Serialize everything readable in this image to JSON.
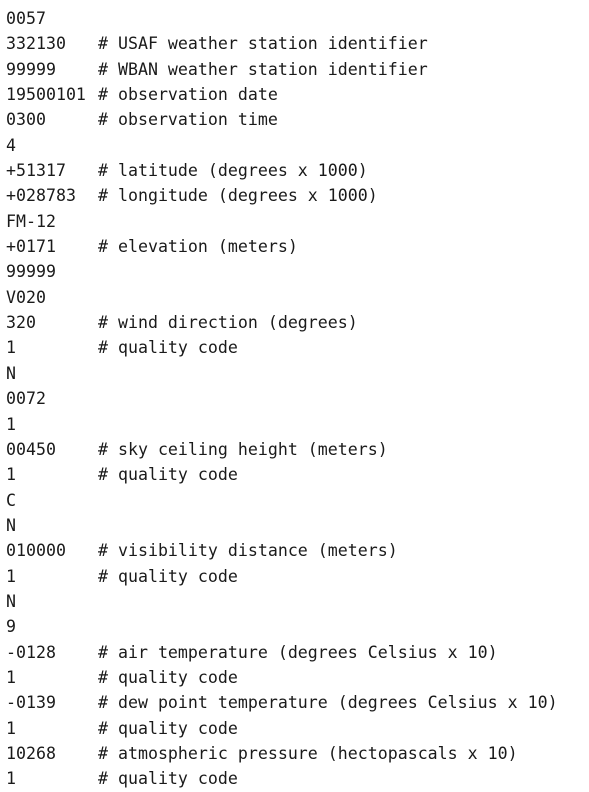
{
  "lines": [
    {
      "value": "0057",
      "comment": ""
    },
    {
      "value": "332130",
      "comment": "# USAF weather station identifier"
    },
    {
      "value": "99999",
      "comment": "# WBAN weather station identifier"
    },
    {
      "value": "19500101",
      "comment": "# observation date"
    },
    {
      "value": "0300",
      "comment": "# observation time"
    },
    {
      "value": "4",
      "comment": ""
    },
    {
      "value": "+51317",
      "comment": "# latitude (degrees x 1000)"
    },
    {
      "value": "+028783",
      "comment": "# longitude (degrees x 1000)"
    },
    {
      "value": "FM-12",
      "comment": ""
    },
    {
      "value": "+0171",
      "comment": "# elevation (meters)"
    },
    {
      "value": "99999",
      "comment": ""
    },
    {
      "value": "V020",
      "comment": ""
    },
    {
      "value": "320",
      "comment": "# wind direction (degrees)"
    },
    {
      "value": "1",
      "comment": "# quality code"
    },
    {
      "value": "N",
      "comment": ""
    },
    {
      "value": "0072",
      "comment": ""
    },
    {
      "value": "1",
      "comment": ""
    },
    {
      "value": "00450",
      "comment": "# sky ceiling height (meters)"
    },
    {
      "value": "1",
      "comment": "# quality code"
    },
    {
      "value": "C",
      "comment": ""
    },
    {
      "value": "N",
      "comment": ""
    },
    {
      "value": "010000",
      "comment": "# visibility distance (meters)"
    },
    {
      "value": "1",
      "comment": "# quality code"
    },
    {
      "value": "N",
      "comment": ""
    },
    {
      "value": "9",
      "comment": ""
    },
    {
      "value": "-0128",
      "comment": "# air temperature (degrees Celsius x 10)"
    },
    {
      "value": "1",
      "comment": "# quality code"
    },
    {
      "value": "-0139",
      "comment": "# dew point temperature (degrees Celsius x 10)"
    },
    {
      "value": "1",
      "comment": "# quality code"
    },
    {
      "value": "10268",
      "comment": "# atmospheric pressure (hectopascals x 10)"
    },
    {
      "value": "1",
      "comment": "# quality code"
    }
  ]
}
